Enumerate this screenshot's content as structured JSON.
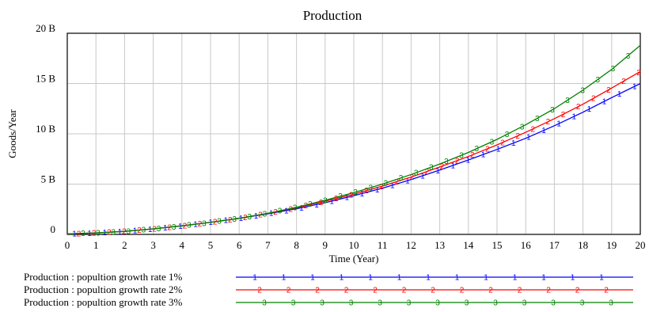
{
  "chart_data": {
    "type": "line",
    "title": "Production",
    "xlabel": "Time (Year)",
    "ylabel": "Goods/Year",
    "xlim": [
      0,
      20
    ],
    "ylim": [
      0,
      20
    ],
    "x_ticks": [
      0,
      1,
      2,
      3,
      4,
      5,
      6,
      7,
      8,
      9,
      10,
      11,
      12,
      13,
      14,
      15,
      16,
      17,
      18,
      19,
      20
    ],
    "x_tick_labels": [
      "0",
      "1",
      "2",
      "3",
      "4",
      "5",
      "6",
      "7",
      "8",
      "9",
      "10",
      "11",
      "12",
      "13",
      "14",
      "15",
      "16",
      "17",
      "18",
      "19",
      "20"
    ],
    "y_ticks": [
      0,
      5,
      10,
      15,
      20
    ],
    "y_tick_labels": [
      "0",
      "5 B",
      "10 B",
      "15 B",
      "20 B"
    ],
    "y_unit": "billion goods/year",
    "grid": true,
    "legend_position": "bottom",
    "x": [
      0,
      1,
      2,
      3,
      4,
      5,
      6,
      7,
      8,
      9,
      10,
      11,
      12,
      13,
      14,
      15,
      16,
      17,
      18,
      19,
      20
    ],
    "series": [
      {
        "name": "Production : popultion growth rate 1%",
        "marker": "1",
        "color": "#0000ff",
        "values": [
          0.05,
          0.15,
          0.3,
          0.55,
          0.85,
          1.2,
          1.6,
          2.05,
          2.55,
          3.15,
          3.85,
          4.6,
          5.45,
          6.4,
          7.4,
          8.45,
          9.55,
          10.8,
          12.15,
          13.6,
          15.0
        ]
      },
      {
        "name": "Production : popultion growth rate 2%",
        "marker": "2",
        "color": "#ff0000",
        "values": [
          0.05,
          0.15,
          0.3,
          0.55,
          0.85,
          1.2,
          1.6,
          2.1,
          2.65,
          3.3,
          4.0,
          4.8,
          5.7,
          6.7,
          7.75,
          8.9,
          10.15,
          11.5,
          12.95,
          14.55,
          16.2
        ]
      },
      {
        "name": "Production : popultion growth rate 3%",
        "marker": "3",
        "color": "#008000",
        "values": [
          0.05,
          0.15,
          0.3,
          0.55,
          0.85,
          1.2,
          1.6,
          2.1,
          2.7,
          3.4,
          4.15,
          5.0,
          5.95,
          7.0,
          8.15,
          9.45,
          10.9,
          12.5,
          14.35,
          16.4,
          18.8
        ]
      }
    ]
  }
}
